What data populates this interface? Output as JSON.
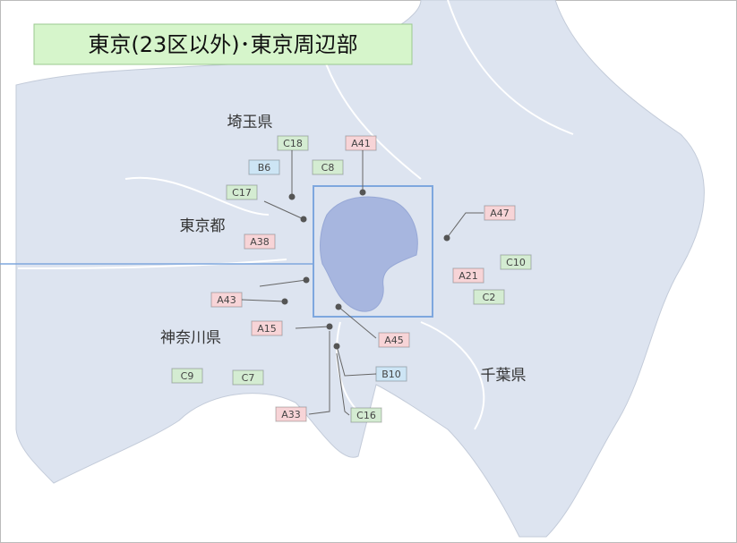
{
  "title": "東京(23区以外)･東京周辺部",
  "prefectures": [
    {
      "name": "埼玉県"
    },
    {
      "name": "東京都"
    },
    {
      "name": "神奈川県"
    },
    {
      "name": "千葉県"
    }
  ],
  "markers": [
    {
      "code": "C18",
      "color": "#d4ecd2"
    },
    {
      "code": "A41",
      "color": "#f7d4d7"
    },
    {
      "code": "B6",
      "color": "#cde5f5"
    },
    {
      "code": "C8",
      "color": "#d4ecd2"
    },
    {
      "code": "C17",
      "color": "#d4ecd2"
    },
    {
      "code": "A47",
      "color": "#f7d4d7"
    },
    {
      "code": "A38",
      "color": "#f7d4d7"
    },
    {
      "code": "C10",
      "color": "#d4ecd2"
    },
    {
      "code": "A21",
      "color": "#f7d4d7"
    },
    {
      "code": "C2",
      "color": "#d4ecd2"
    },
    {
      "code": "A43",
      "color": "#f7d4d7"
    },
    {
      "code": "A15",
      "color": "#f7d4d7"
    },
    {
      "code": "A45",
      "color": "#f7d4d7"
    },
    {
      "code": "B10",
      "color": "#cde5f5"
    },
    {
      "code": "C9",
      "color": "#d4ecd2"
    },
    {
      "code": "C7",
      "color": "#d4ecd2"
    },
    {
      "code": "A33",
      "color": "#f7d4d7"
    },
    {
      "code": "C16",
      "color": "#d4ecd2"
    }
  ]
}
